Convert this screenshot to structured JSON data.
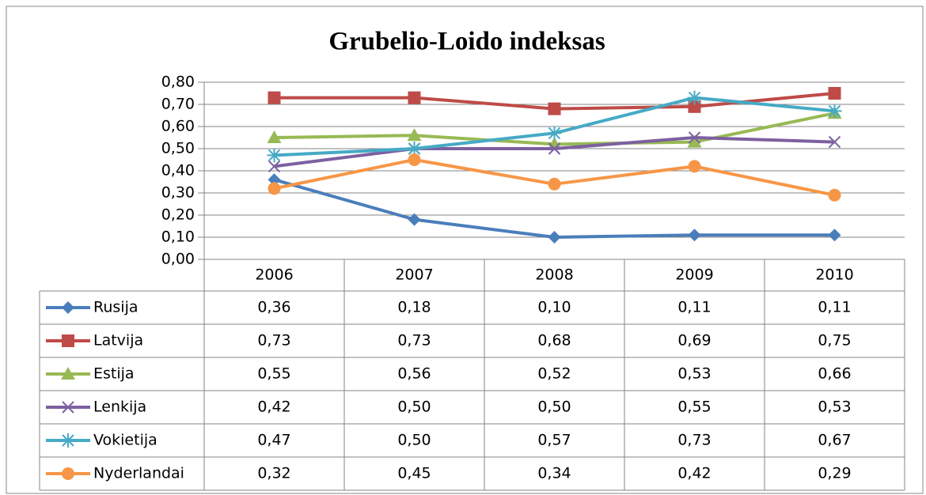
{
  "chart_data": {
    "type": "line",
    "title": "Grubelio-Loido indeksas",
    "categories": [
      "2006",
      "2007",
      "2008",
      "2009",
      "2010"
    ],
    "series": [
      {
        "name": "Rusija",
        "color": "#4a7ebb",
        "marker": "diamond",
        "values": [
          0.36,
          0.18,
          0.1,
          0.11,
          0.11
        ],
        "value_labels": [
          "0,36",
          "0,18",
          "0,10",
          "0,11",
          "0,11"
        ]
      },
      {
        "name": "Latvija",
        "color": "#be4b48",
        "marker": "square",
        "values": [
          0.73,
          0.73,
          0.68,
          0.69,
          0.75
        ],
        "value_labels": [
          "0,73",
          "0,73",
          "0,68",
          "0,69",
          "0,75"
        ]
      },
      {
        "name": "Estija",
        "color": "#98b954",
        "marker": "triangle",
        "values": [
          0.55,
          0.56,
          0.52,
          0.53,
          0.66
        ],
        "value_labels": [
          "0,55",
          "0,56",
          "0,52",
          "0,53",
          "0,66"
        ]
      },
      {
        "name": "Lenkija",
        "color": "#7d60a0",
        "marker": "x",
        "values": [
          0.42,
          0.5,
          0.5,
          0.55,
          0.53
        ],
        "value_labels": [
          "0,42",
          "0,50",
          "0,50",
          "0,55",
          "0,53"
        ]
      },
      {
        "name": "Vokietija",
        "color": "#46aac5",
        "marker": "star",
        "values": [
          0.47,
          0.5,
          0.57,
          0.73,
          0.67
        ],
        "value_labels": [
          "0,47",
          "0,50",
          "0,57",
          "0,73",
          "0,67"
        ]
      },
      {
        "name": "Nyderlandai",
        "color": "#f79646",
        "marker": "circle",
        "values": [
          0.32,
          0.45,
          0.34,
          0.42,
          0.29
        ],
        "value_labels": [
          "0,32",
          "0,45",
          "0,34",
          "0,42",
          "0,29"
        ]
      }
    ],
    "ylim": [
      0,
      0.8
    ],
    "yticks": [
      {
        "value": 0,
        "label": "0,00"
      },
      {
        "value": 0.1,
        "label": "0,10"
      },
      {
        "value": 0.2,
        "label": "0,20"
      },
      {
        "value": 0.3,
        "label": "0,30"
      },
      {
        "value": 0.4,
        "label": "0,40"
      },
      {
        "value": 0.5,
        "label": "0,50"
      },
      {
        "value": 0.6,
        "label": "0,60"
      },
      {
        "value": 0.7,
        "label": "0,70"
      },
      {
        "value": 0.8,
        "label": "0,80"
      }
    ],
    "grid": true,
    "legend": "table"
  }
}
